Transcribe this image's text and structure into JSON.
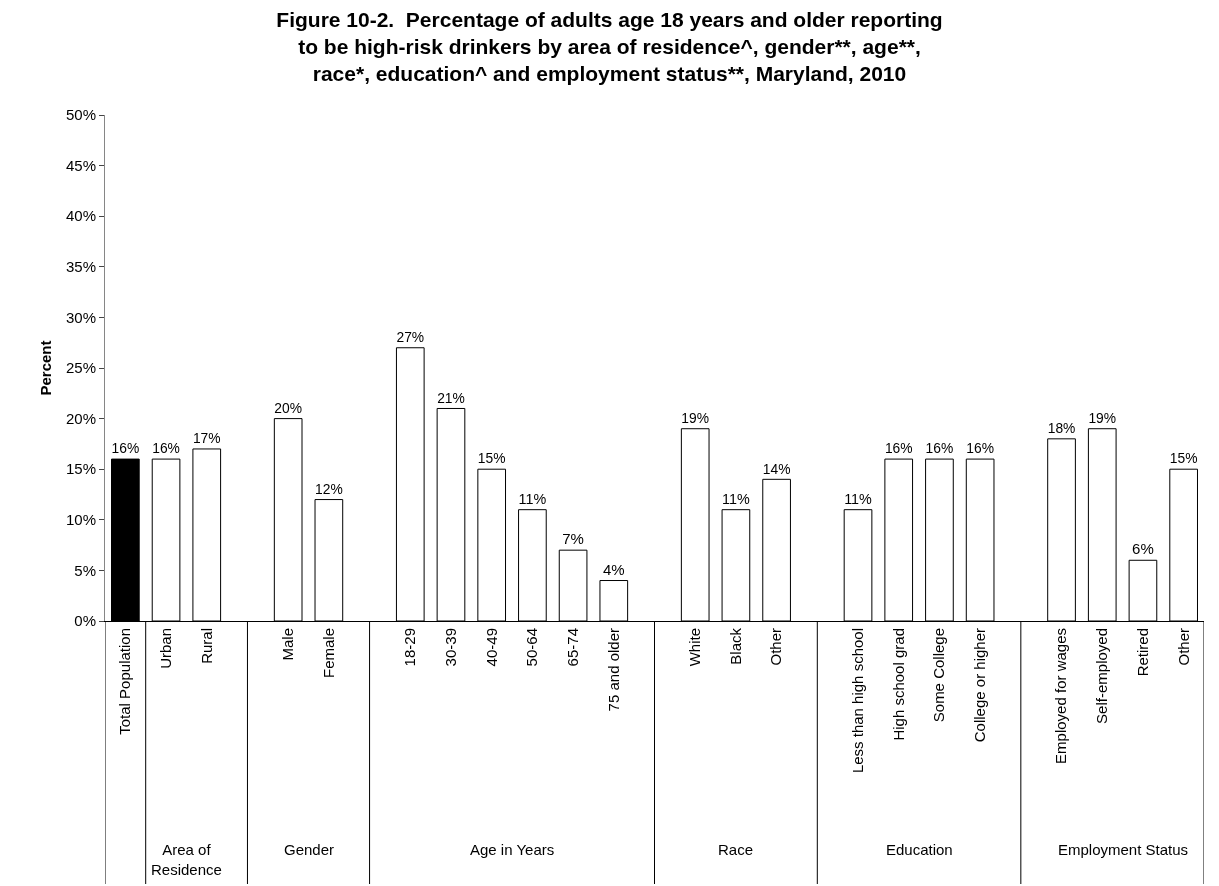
{
  "chart_data": {
    "type": "bar",
    "title": "Figure 10-2.  Percentage of adults age 18 years and older reporting to be high-risk drinkers by area of residence^, gender**, age**, race*, education^ and employment status**, Maryland, 2010",
    "ylabel": "Percent",
    "categories": [
      "Total Population",
      "Urban",
      "Rural",
      null,
      "Male",
      "Female",
      null,
      "18-29",
      "30-39",
      "40-49",
      "50-64",
      "65-74",
      "75 and older",
      null,
      "White",
      "Black",
      "Other",
      null,
      "Less than high school",
      "High school grad",
      "Some College",
      "College or higher",
      null,
      "Employed for wages",
      "Self-employed",
      "Retired",
      "Other"
    ],
    "values": [
      16,
      16,
      17,
      null,
      20,
      12,
      null,
      27,
      21,
      15,
      11,
      7,
      4,
      null,
      19,
      11,
      14,
      null,
      11,
      16,
      16,
      16,
      null,
      18,
      19,
      6,
      15
    ],
    "value_labels": [
      "16%",
      "16%",
      "17%",
      null,
      "20%",
      "12%",
      null,
      "27%",
      "21%",
      "15%",
      "11%",
      "7%",
      "4%",
      null,
      "19%",
      "11%",
      "14%",
      null,
      "11%",
      "16%",
      "16%",
      "16%",
      null,
      "18%",
      "19%",
      "6%",
      "15%"
    ],
    "colors": [
      "#000000",
      "#ffffff",
      "#ffffff",
      null,
      "#ffffff",
      "#ffffff",
      null,
      "#ffffff",
      "#ffffff",
      "#ffffff",
      "#ffffff",
      "#ffffff",
      "#ffffff",
      null,
      "#ffffff",
      "#ffffff",
      "#ffffff",
      null,
      "#ffffff",
      "#ffffff",
      "#ffffff",
      "#ffffff",
      null,
      "#ffffff",
      "#ffffff",
      "#ffffff",
      "#ffffff"
    ],
    "ylim": [
      0,
      50
    ],
    "yticks": [
      {
        "value": 0,
        "label": "0%"
      },
      {
        "value": 5,
        "label": "5%"
      },
      {
        "value": 10,
        "label": "10%"
      },
      {
        "value": 15,
        "label": "15%"
      },
      {
        "value": 20,
        "label": "20%"
      },
      {
        "value": 25,
        "label": "25%"
      },
      {
        "value": 30,
        "label": "30%"
      },
      {
        "value": 35,
        "label": "35%"
      },
      {
        "value": 40,
        "label": "40%"
      },
      {
        "value": 45,
        "label": "45%"
      },
      {
        "value": 50,
        "label": "50%"
      }
    ],
    "annotations": [
      "Area of Residence",
      "Gender",
      "Age in Years",
      "Race",
      "Education",
      "Employment Status"
    ]
  }
}
